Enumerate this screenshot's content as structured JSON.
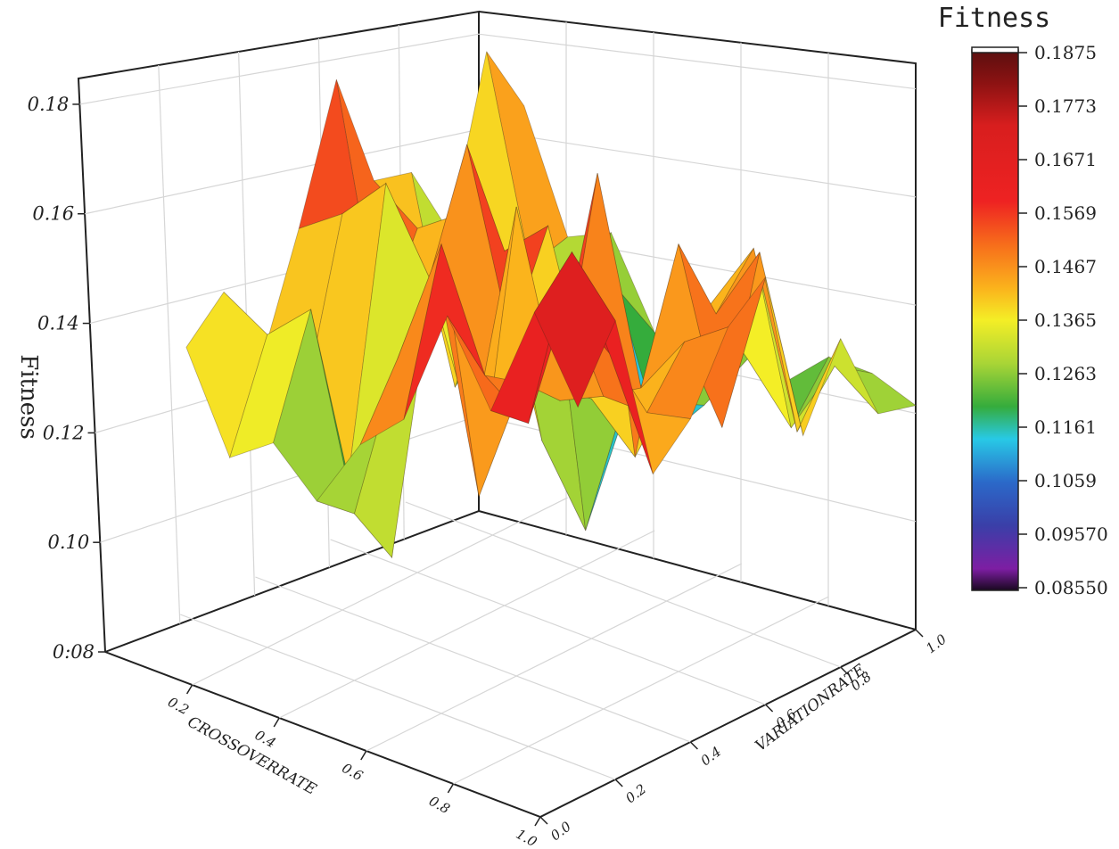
{
  "chart_data": {
    "type": "surface3d",
    "title": "",
    "zlabel": "Fitness",
    "xlabel": "CROSSOVERRATE",
    "ylabel": "VARIATIONRATE",
    "xlim": [
      0.0,
      1.0
    ],
    "ylim": [
      0.0,
      1.0
    ],
    "zlim": [
      0.08,
      0.19
    ],
    "x_ticks": [
      "0.2",
      "0.4",
      "0.6",
      "0.8",
      "1.0"
    ],
    "y_ticks": [
      "0.0",
      "0.2",
      "0.4",
      "0.6",
      "0.8",
      "1.0"
    ],
    "z_ticks": [
      "0:08",
      "0.10",
      "0.12",
      "0.14",
      "0.16",
      "0.18"
    ],
    "grid": true,
    "x": [
      0.1,
      0.2,
      0.3,
      0.4,
      0.5,
      0.6,
      0.7,
      0.8,
      0.9,
      1.0
    ],
    "y": [
      0.1,
      0.2,
      0.3,
      0.4,
      0.5,
      0.6,
      0.7,
      0.8,
      0.9,
      1.0
    ],
    "z": [
      [
        0.138,
        0.145,
        0.128,
        0.15,
        0.175,
        0.152,
        0.15,
        0.135,
        0.166,
        0.152
      ],
      [
        0.12,
        0.14,
        0.124,
        0.156,
        0.13,
        0.146,
        0.112,
        0.12,
        0.128,
        0.13
      ],
      [
        0.126,
        0.148,
        0.112,
        0.165,
        0.138,
        0.152,
        0.14,
        0.125,
        0.12,
        0.134
      ],
      [
        0.118,
        0.112,
        0.1,
        0.15,
        0.172,
        0.148,
        0.108,
        0.1,
        0.13,
        0.118
      ],
      [
        0.132,
        0.145,
        0.16,
        0.123,
        0.138,
        0.156,
        0.094,
        0.112,
        0.104,
        0.12
      ],
      [
        0.14,
        0.17,
        0.118,
        0.17,
        0.132,
        0.126,
        0.125,
        0.118,
        0.114,
        0.124
      ],
      [
        0.163,
        0.148,
        0.143,
        0.136,
        0.176,
        0.118,
        0.128,
        0.14,
        0.126,
        0.118
      ],
      [
        0.148,
        0.142,
        0.162,
        0.14,
        0.138,
        0.162,
        0.145,
        0.154,
        0.116,
        0.126
      ],
      [
        0.17,
        0.178,
        0.155,
        0.14,
        0.15,
        0.13,
        0.16,
        0.122,
        0.131,
        0.126
      ],
      [
        0.155,
        0.168,
        0.135,
        0.142,
        0.156,
        0.162,
        0.128,
        0.143,
        0.125,
        0.123
      ]
    ],
    "colorbar": {
      "title": "Fitness",
      "labels": [
        "0.1875",
        "0.1773",
        "0.1671",
        "0.1569",
        "0.1467",
        "0.1365",
        "0.1263",
        "0.1161",
        "0.1059",
        "0.09570",
        "0.08550"
      ],
      "min": 0.0855,
      "max": 0.1875
    }
  }
}
